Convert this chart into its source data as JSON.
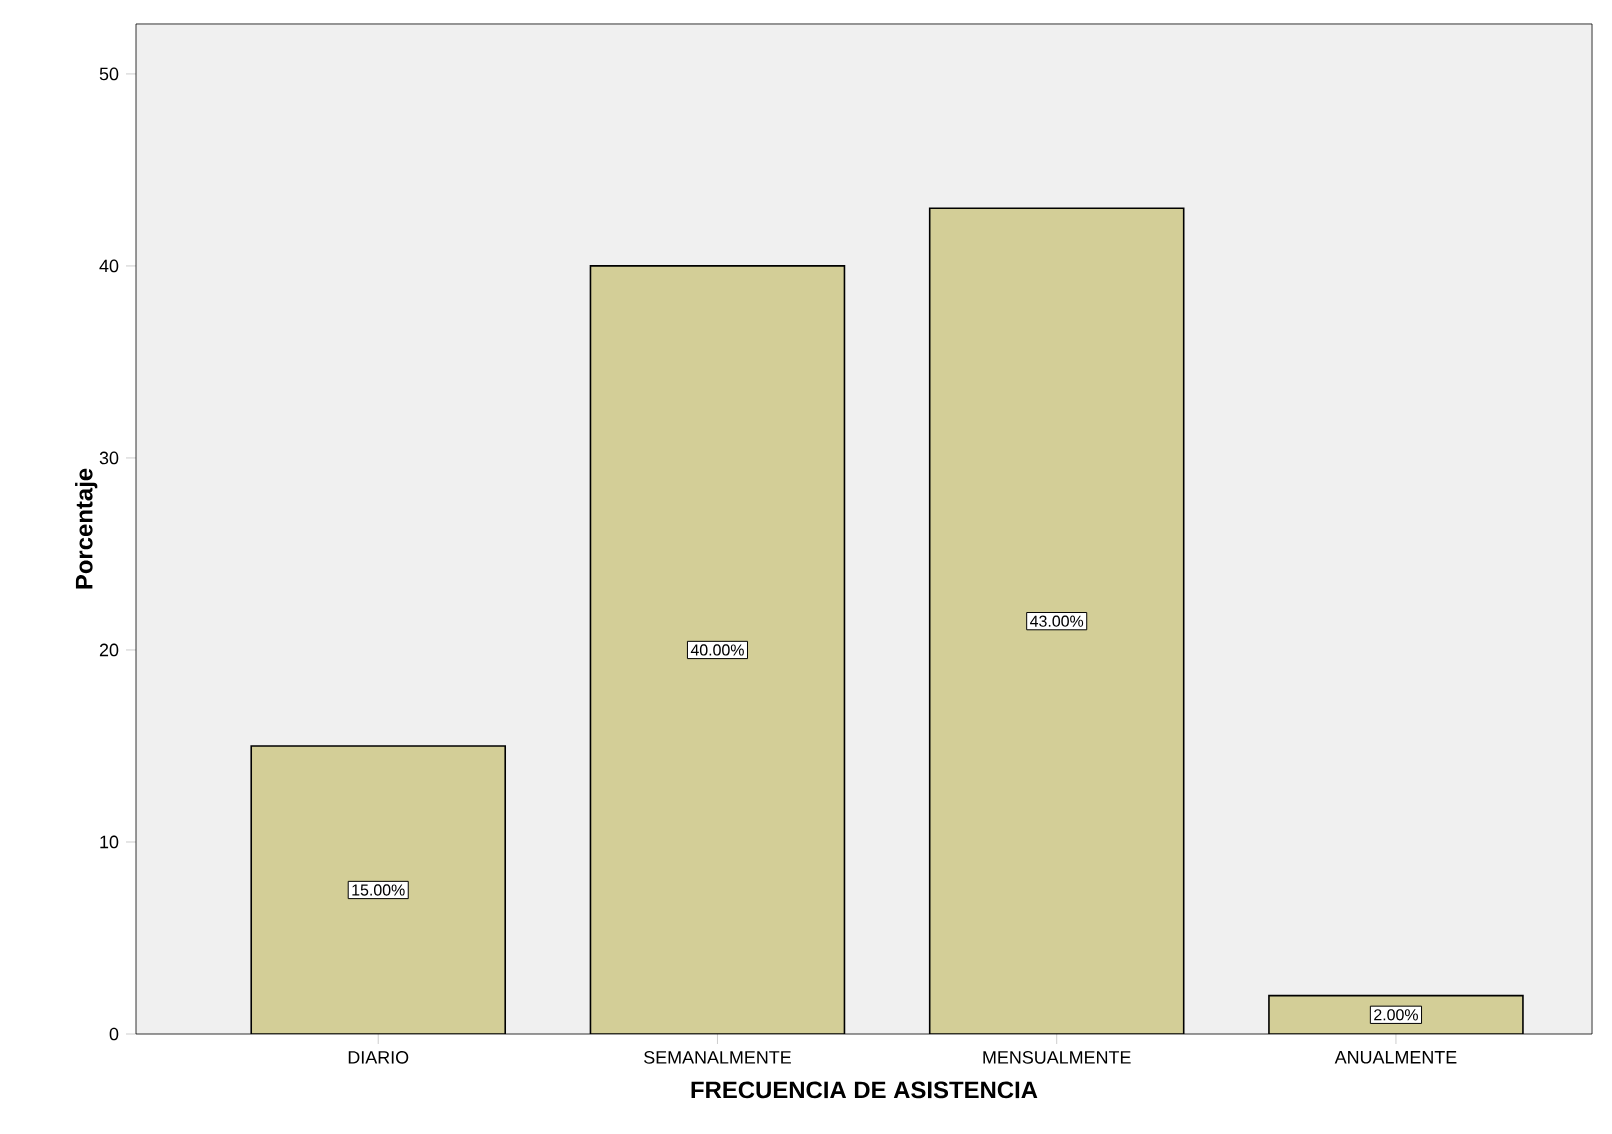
{
  "chart_data": {
    "type": "bar",
    "xlabel": "FRECUENCIA DE ASISTENCIA",
    "ylabel": "Porcentaje",
    "categories": [
      "DIARIO",
      "SEMANALMENTE",
      "MENSUALMENTE",
      "ANUALMENTE"
    ],
    "values": [
      15,
      40,
      43,
      2
    ],
    "value_labels": [
      "15.00%",
      "40.00%",
      "43.00%",
      "2.00%"
    ],
    "color": "#d3ce97",
    "ylim": [
      0,
      52.6
    ],
    "yticks": [
      0,
      10,
      20,
      30,
      40,
      50
    ],
    "grid": false
  }
}
